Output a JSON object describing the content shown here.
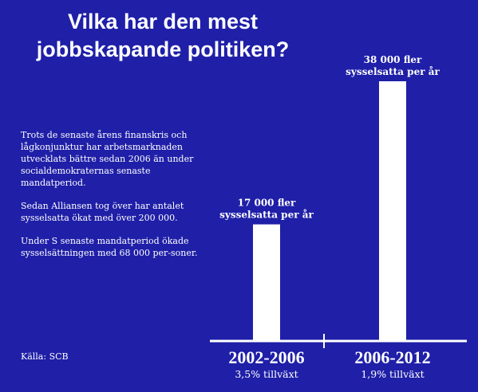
{
  "title_line1": "Vilka har den mest",
  "title_line2": "jobbskapande politiken?",
  "paragraphs": [
    "Trots de senaste årens finanskris och lågkonjunktur har arbetsmarknaden utvecklats bättre sedan 2006 än under socialdemokraternas senaste mandatperiod.",
    "Sedan Alliansen tog över har antalet sysselsatta ökat med över 200 000.",
    "Under S senaste mandatperiod ökade sysselsättningen med 68 000 per-soner."
  ],
  "source": "Källa: SCB",
  "colors": {
    "background": "#1f1fa8",
    "bar": "#ffffff",
    "text": "#ffffff"
  },
  "chart_data": {
    "type": "bar",
    "categories": [
      "2002-2006",
      "2006-2012"
    ],
    "values": [
      17000,
      38000
    ],
    "value_labels": [
      [
        "17 000 fler",
        "sysselsatta per år"
      ],
      [
        "38 000 fler",
        "sysselsatta per år"
      ]
    ],
    "growth_labels": [
      "3,5% tillväxt",
      "1,9% tillväxt"
    ],
    "ylim": [
      0,
      38000
    ],
    "grid": false,
    "legend": "none",
    "xlabel": "",
    "ylabel": ""
  }
}
